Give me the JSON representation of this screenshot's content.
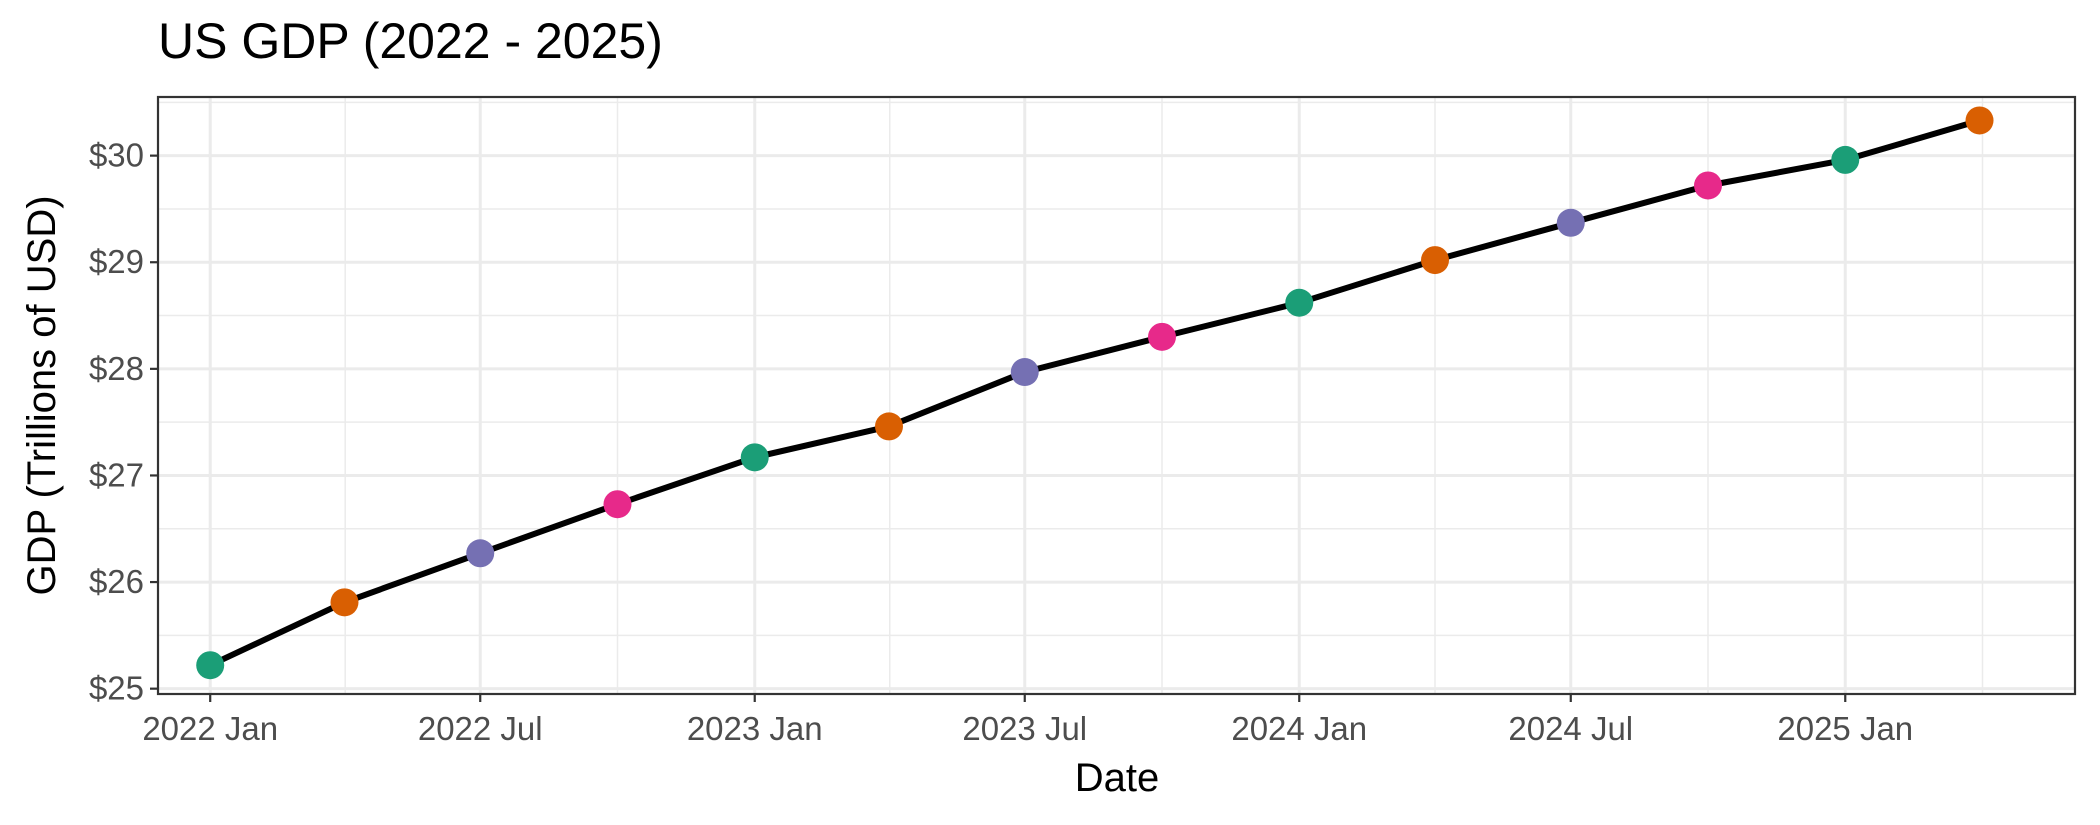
{
  "chart_data": {
    "type": "line",
    "title": "US GDP (2022 - 2025)",
    "xlabel": "Date",
    "ylabel": "GDP (Trillions of USD)",
    "x_tick_labels": [
      {
        "date": "2022-01-01",
        "label": "2022 Jan"
      },
      {
        "date": "2022-07-01",
        "label": "2022 Jul"
      },
      {
        "date": "2023-01-01",
        "label": "2023 Jan"
      },
      {
        "date": "2023-07-01",
        "label": "2023 Jul"
      },
      {
        "date": "2024-01-01",
        "label": "2024 Jan"
      },
      {
        "date": "2024-07-01",
        "label": "2024 Jul"
      },
      {
        "date": "2025-01-01",
        "label": "2025 Jan"
      }
    ],
    "y_ticks": [
      {
        "value": 25,
        "label": "$25"
      },
      {
        "value": 26,
        "label": "$26"
      },
      {
        "value": 27,
        "label": "$27"
      },
      {
        "value": 28,
        "label": "$28"
      },
      {
        "value": 29,
        "label": "$29"
      },
      {
        "value": 30,
        "label": "$30"
      }
    ],
    "ylim": [
      24.95,
      30.55
    ],
    "xlim": [
      "2021-11-27",
      "2025-06-04"
    ],
    "grid": true,
    "line_color": "#000000",
    "point_colors": [
      "#1b9e77",
      "#d95f02",
      "#7570b3",
      "#e7298a"
    ],
    "points": [
      {
        "x": "2022-01-01",
        "y": 25.22
      },
      {
        "x": "2022-04-01",
        "y": 25.81
      },
      {
        "x": "2022-07-01",
        "y": 26.27
      },
      {
        "x": "2022-10-01",
        "y": 26.73
      },
      {
        "x": "2023-01-01",
        "y": 27.17
      },
      {
        "x": "2023-04-01",
        "y": 27.46
      },
      {
        "x": "2023-07-01",
        "y": 27.97
      },
      {
        "x": "2023-10-01",
        "y": 28.3
      },
      {
        "x": "2024-01-01",
        "y": 28.62
      },
      {
        "x": "2024-04-01",
        "y": 29.02
      },
      {
        "x": "2024-07-01",
        "y": 29.37
      },
      {
        "x": "2024-10-01",
        "y": 29.72
      },
      {
        "x": "2025-01-01",
        "y": 29.96
      },
      {
        "x": "2025-04-01",
        "y": 30.33
      }
    ]
  }
}
